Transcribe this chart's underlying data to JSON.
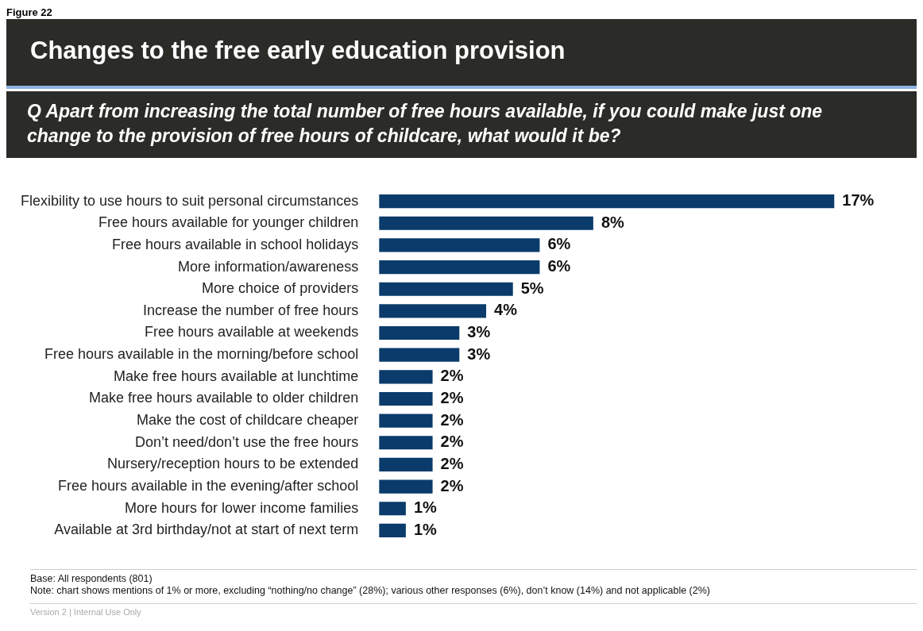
{
  "chart_data": {
    "type": "bar",
    "orientation": "horizontal",
    "title": "Changes to the free early education provision",
    "subtitle": "Q   Apart from increasing the total number of free hours available, if you could make just one change to the provision of free hours of childcare, what would it be?",
    "categories": [
      "Flexibility to use hours to suit personal circumstances",
      "Free hours available for younger children",
      "Free hours available in school holidays",
      "More information/awareness",
      "More choice of providers",
      "Increase the number of free hours",
      "Free hours available at weekends",
      "Free hours available in the morning/before school",
      "Make free hours available at lunchtime",
      "Make free hours available to older children",
      "Make the cost of childcare cheaper",
      "Don’t need/don’t use the free hours",
      "Nursery/reception hours to be extended",
      "Free hours available in the evening/after school",
      "More hours for lower income families",
      "Available at 3rd birthday/not at start of next term"
    ],
    "values": [
      17,
      8,
      6,
      6,
      5,
      4,
      3,
      3,
      2,
      2,
      2,
      2,
      2,
      2,
      1,
      1
    ],
    "value_labels": [
      "17%",
      "8%",
      "6%",
      "6%",
      "5%",
      "4%",
      "3%",
      "3%",
      "2%",
      "2%",
      "2%",
      "2%",
      "2%",
      "2%",
      "1%",
      "1%"
    ],
    "color": "#0a3b6b",
    "legend": false,
    "annotations": [
      "Figure 22",
      "Base: All respondents (801)",
      "Note: chart shows mentions of 1% or more, excluding “nothing/no change” (28%); various other responses (6%), don’t know (14%) and not applicable (2%)",
      "Version 2 | Internal Use Only"
    ]
  }
}
